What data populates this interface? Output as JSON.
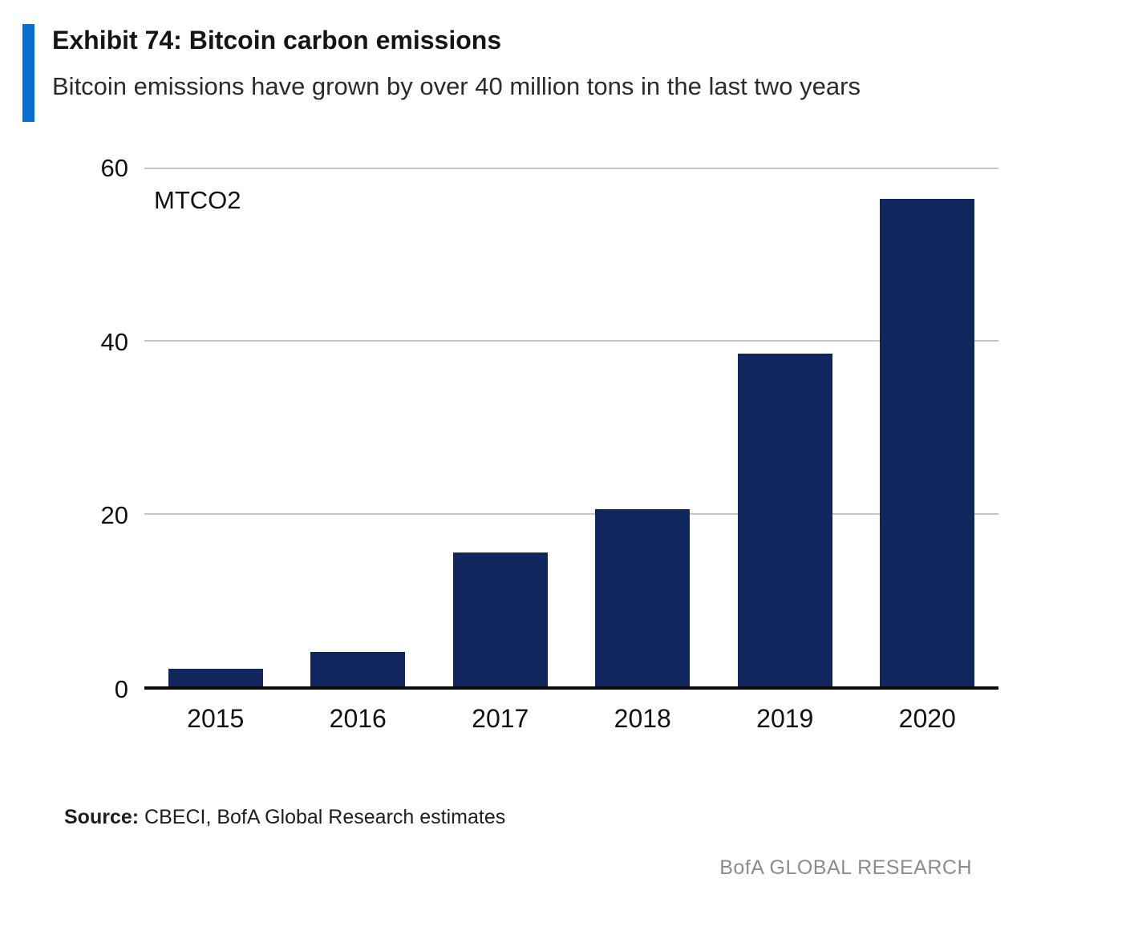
{
  "header": {
    "exhibit_title": "Exhibit 74: Bitcoin carbon emissions",
    "subtitle": "Bitcoin emissions have grown by over 40 million tons in the last two years",
    "accent_color": "#0a6ed1"
  },
  "chart_data": {
    "type": "bar",
    "title": "Exhibit 74: Bitcoin carbon emissions",
    "subtitle": "Bitcoin emissions have grown by over 40 million tons in the last two years",
    "unit_label": "MTCO2",
    "categories": [
      "2015",
      "2016",
      "2017",
      "2018",
      "2019",
      "2020"
    ],
    "values": [
      2,
      4,
      15.5,
      20.5,
      38.5,
      56.5
    ],
    "xlabel": "",
    "ylabel": "MTCO2",
    "ylim": [
      0,
      60
    ],
    "yticks": [
      0,
      20,
      40,
      60
    ],
    "grid": "horizontal",
    "legend": "none",
    "bar_color": "#12265e",
    "gridline_color": "#c6c6c6",
    "baseline_color": "#0b0b0b"
  },
  "source": {
    "label": "Source:",
    "text": " CBECI, BofA Global Research estimates"
  },
  "footer": {
    "text": "BofA GLOBAL RESEARCH"
  }
}
